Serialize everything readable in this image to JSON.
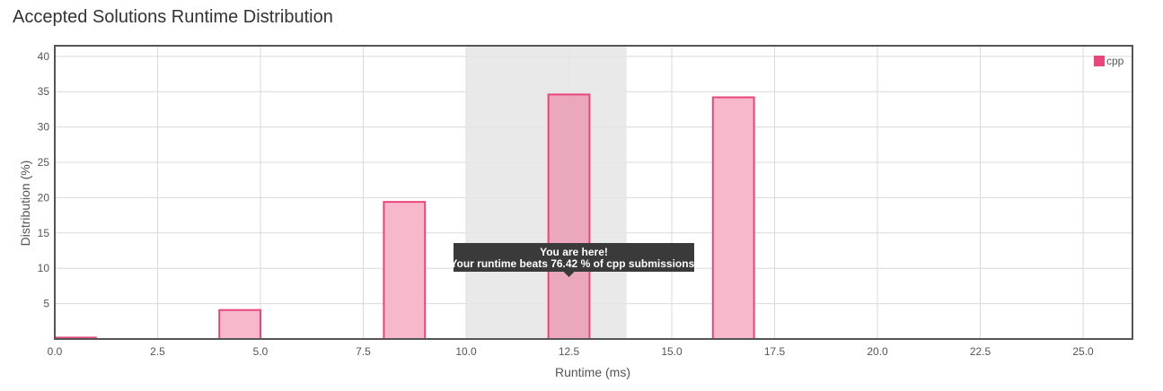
{
  "page_title": "Accepted Solutions Runtime Distribution",
  "colors": {
    "bar_fill": "#f8b8cc",
    "bar_stroke": "#e8467c",
    "highlight_bar_fill": "#eba8bc",
    "highlight_band": "#e5e5e5",
    "grid": "#d9d9d9",
    "frame": "#555555",
    "tooltip_bg": "#3a3a3a"
  },
  "chart_data": {
    "type": "bar",
    "title": "",
    "xlabel": "Runtime (ms)",
    "ylabel": "Distribution (%)",
    "xlim": [
      0,
      26.2
    ],
    "ylim": [
      0,
      41.5
    ],
    "x_ticks": [
      "0.0",
      "2.5",
      "5.0",
      "7.5",
      "10.0",
      "12.5",
      "15.0",
      "17.5",
      "20.0",
      "22.5",
      "25.0"
    ],
    "y_ticks": [
      "5",
      "10",
      "15",
      "20",
      "25",
      "30",
      "35",
      "40"
    ],
    "grid": true,
    "legend": {
      "position": "top-right",
      "entries": [
        "cpp"
      ]
    },
    "series": [
      {
        "name": "cpp",
        "bars": [
          {
            "x_start": 0,
            "x_end": 1,
            "value": 0.2
          },
          {
            "x_start": 4,
            "x_end": 5,
            "value": 4.1
          },
          {
            "x_start": 8,
            "x_end": 9,
            "value": 19.4
          },
          {
            "x_start": 12,
            "x_end": 13,
            "value": 34.6
          },
          {
            "x_start": 16,
            "x_end": 17,
            "value": 34.2
          }
        ]
      }
    ],
    "highlight_range": [
      10,
      13.9
    ],
    "highlighted_bar_index": 3,
    "tooltip": {
      "line1": "You are here!",
      "line2": "Your runtime beats 76.42 % of cpp submissions."
    }
  }
}
